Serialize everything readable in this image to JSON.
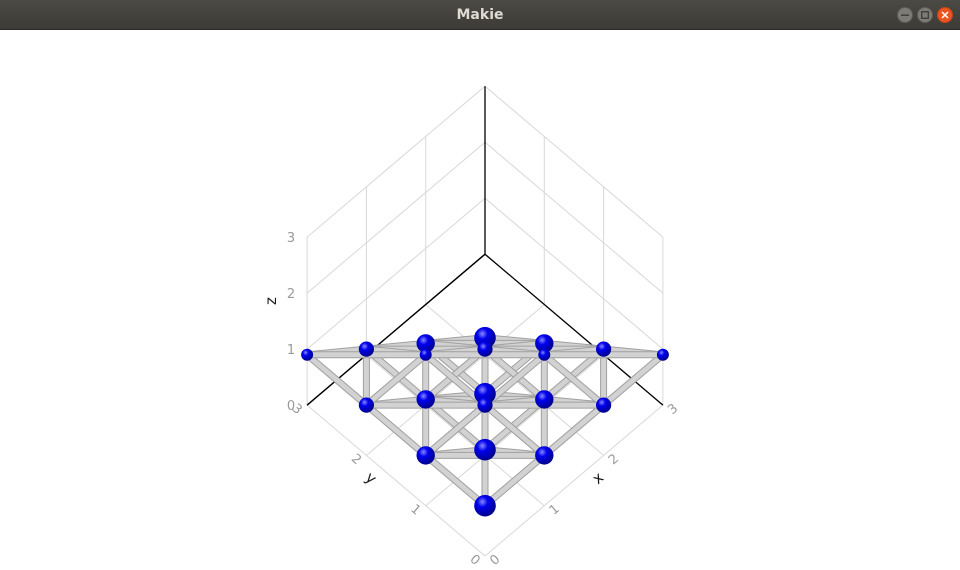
{
  "window": {
    "title": "Makie",
    "buttons": {
      "minimize": "minimize-icon",
      "maximize": "maximize-icon",
      "close": "close-icon"
    }
  },
  "colors": {
    "sphere": "#0000ee",
    "rod": "#d2d2d2",
    "grid": "#d8d8d8",
    "axis": "#000000",
    "ticks": "#9a9a9a"
  },
  "chart_data": {
    "type": "scatter3d",
    "xlabel": "x",
    "ylabel": "y",
    "zlabel": "z",
    "xlim": [
      0,
      3
    ],
    "ylim": [
      0,
      3
    ],
    "zlim": [
      0,
      3
    ],
    "xticks": [
      "0",
      "1",
      "2",
      "3"
    ],
    "yticks": [
      "0",
      "1",
      "2",
      "3"
    ],
    "zticks": [
      "0",
      "1",
      "2",
      "3"
    ],
    "grid": true,
    "description_kind": "tetrahedral lattice of spheres joined by rods"
  }
}
